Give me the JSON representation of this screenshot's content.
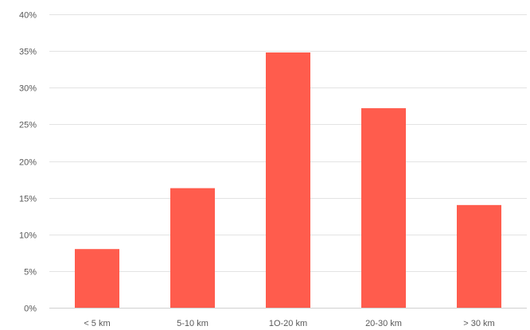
{
  "chart_data": {
    "type": "bar",
    "title": "",
    "xlabel": "",
    "ylabel": "",
    "categories": [
      "< 5 km",
      "5-10 km",
      "1O-20 km",
      "20-30 km",
      "> 30 km"
    ],
    "values": [
      8,
      16.3,
      34.8,
      27.2,
      14
    ],
    "value_unit": "%",
    "ylim": [
      0,
      40
    ],
    "y_ticks": [
      0,
      5,
      10,
      15,
      20,
      25,
      30,
      35,
      40
    ],
    "y_tick_labels": [
      "0%",
      "5%",
      "10%",
      "15%",
      "20%",
      "25%",
      "30%",
      "35%",
      "40%"
    ],
    "grid": true,
    "legend": "none",
    "colors": {
      "bar": "#ff5c4d",
      "grid": "#e3e3e3",
      "text": "#595959"
    }
  }
}
